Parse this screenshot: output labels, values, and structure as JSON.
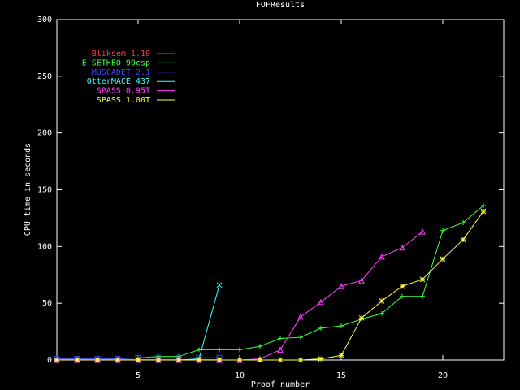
{
  "chart_data": {
    "type": "line",
    "title": "FOFResults",
    "x_label": "Proof number",
    "y_label": "CPU time in seconds",
    "x": [
      1,
      2,
      3,
      4,
      5,
      6,
      7,
      8,
      9,
      10,
      11,
      12,
      13,
      14,
      15,
      16,
      17,
      18,
      19,
      20,
      21,
      22
    ],
    "series": [
      {
        "name": "Bliksem 1.10",
        "color": "#ff4040",
        "values": [
          0.3,
          0.3,
          0.3,
          0.3,
          0.3,
          0.3,
          0.3,
          0.3,
          0.3,
          null,
          null,
          null,
          null,
          null,
          null,
          null,
          null,
          null,
          null,
          null,
          null,
          null
        ]
      },
      {
        "name": "E-SETHEO 99csp",
        "color": "#40ff40",
        "values": [
          1,
          1,
          1,
          1,
          2,
          3,
          3,
          9,
          9,
          9,
          12,
          19,
          20,
          28,
          30,
          36,
          41,
          56,
          56,
          114,
          121,
          136
        ]
      },
      {
        "name": "MUSCADET 2.1",
        "color": "#4040ff",
        "values": [
          1,
          1,
          1,
          1,
          2,
          2,
          2,
          2,
          2,
          null,
          null,
          null,
          null,
          null,
          null,
          null,
          null,
          null,
          null,
          null,
          null,
          null
        ]
      },
      {
        "name": "OtterMACE 437",
        "color": "#40ffff",
        "values": [
          0,
          0,
          0,
          0,
          0,
          0,
          0,
          1,
          66,
          null,
          null,
          null,
          null,
          null,
          null,
          null,
          null,
          null,
          null,
          null,
          null,
          null
        ]
      },
      {
        "name": "SPASS 0.95T",
        "color": "#ff40ff",
        "values": [
          0,
          0,
          0,
          0,
          0,
          0,
          0,
          0,
          0,
          0,
          1,
          9,
          38,
          51,
          65,
          70,
          91,
          99,
          113,
          null,
          null,
          null
        ]
      },
      {
        "name": "SPASS 1.00T",
        "color": "#ffff40",
        "values": [
          0,
          0,
          0,
          0,
          0,
          0,
          0,
          0,
          0,
          0,
          0,
          0,
          0,
          1,
          4,
          37,
          52,
          65,
          71,
          89,
          106,
          131
        ]
      }
    ],
    "xlim": [
      1,
      23
    ],
    "ylim": [
      0,
      300
    ],
    "xticks": [
      5,
      10,
      15,
      20
    ],
    "yticks": [
      0,
      50,
      100,
      150,
      200,
      250,
      300
    ],
    "legend": "top-left"
  }
}
